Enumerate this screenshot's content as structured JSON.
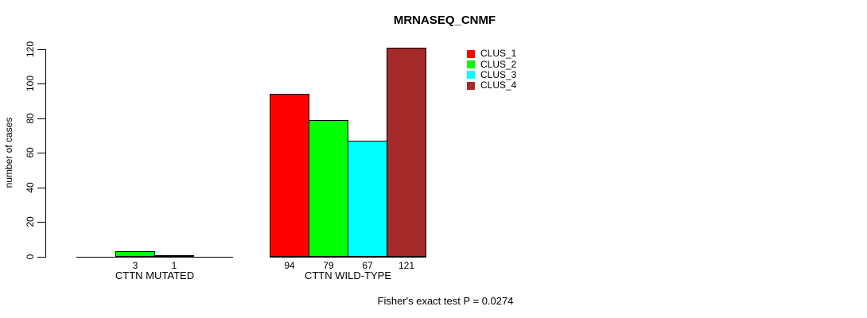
{
  "chart_data": {
    "type": "bar",
    "title": "MRNASEQ_CNMF",
    "ylabel": "number of cases",
    "xlabel": "",
    "ylim": [
      0,
      120
    ],
    "yticks": [
      0,
      20,
      40,
      60,
      80,
      100,
      120
    ],
    "grid": false,
    "legend_position": "top-right",
    "categories": [
      "CTTN MUTATED",
      "CTTN WILD-TYPE"
    ],
    "series": [
      {
        "name": "CLUS_1",
        "color": "#ff0000",
        "values": [
          0,
          94
        ]
      },
      {
        "name": "CLUS_2",
        "color": "#00ff00",
        "values": [
          3,
          79
        ]
      },
      {
        "name": "CLUS_3",
        "color": "#00ffff",
        "values": [
          1,
          67
        ]
      },
      {
        "name": "CLUS_4",
        "color": "#a52a2a",
        "values": [
          0,
          121
        ]
      }
    ],
    "bar_value_labels_shown": [
      "3",
      "1",
      "94",
      "79",
      "67",
      "121"
    ],
    "annotation": "Fisher's exact test P = 0.0274"
  },
  "colors": {
    "background": "#ffffff",
    "axis": "#000000",
    "text": "#000000"
  }
}
